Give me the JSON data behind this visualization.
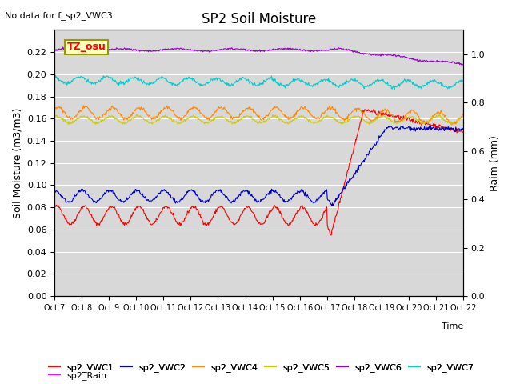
{
  "title": "SP2 Soil Moisture",
  "subtitle": "No data for f_sp2_VWC3",
  "ylabel_left": "Soil Moisture (m3/m3)",
  "ylabel_right": "Raim (mm)",
  "xlabel": "Time",
  "annotation": "TZ_osu",
  "background_color": "#d8d8d8",
  "ylim_left": [
    0.0,
    0.24
  ],
  "ylim_right": [
    0.0,
    1.1
  ],
  "yticks_left": [
    0.0,
    0.02,
    0.04,
    0.06,
    0.08,
    0.1,
    0.12,
    0.14,
    0.16,
    0.18,
    0.2,
    0.22
  ],
  "yticks_right": [
    0.0,
    0.2,
    0.4,
    0.6,
    0.8,
    1.0
  ],
  "xtick_labels": [
    "Oct 7",
    "Oct 8",
    "Oct 9",
    "Oct 10",
    "Oct 11",
    "Oct 12",
    "Oct 13",
    "Oct 14",
    "Oct 15",
    "Oct 16",
    "Oct 17",
    "Oct 18",
    "Oct 19",
    "Oct 20",
    "Oct 21",
    "Oct 22"
  ],
  "colors": {
    "sp2_VWC1": "#ff0000",
    "sp2_VWC2": "#0000cc",
    "sp2_VWC4": "#ff8800",
    "sp2_VWC5": "#cccc00",
    "sp2_VWC6": "#9900cc",
    "sp2_VWC7": "#00cccc",
    "sp2_Rain": "#ff00ff"
  }
}
